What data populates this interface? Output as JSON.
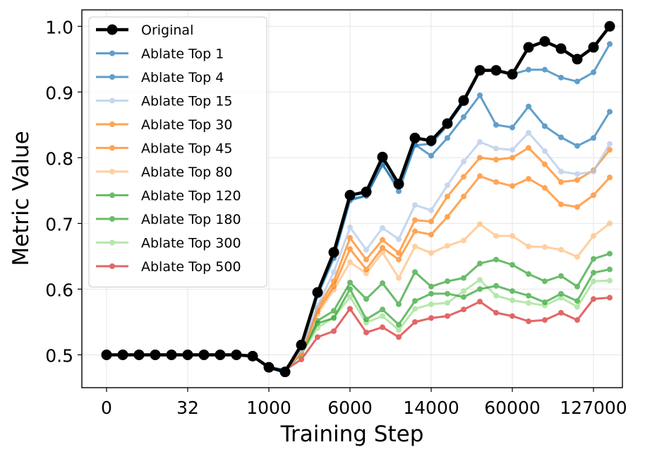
{
  "chart_data": {
    "type": "line",
    "title": "",
    "xlabel": "Training Step",
    "ylabel": "Metric Value",
    "ylim": [
      0.45,
      1.025
    ],
    "yticks": [
      0.5,
      0.6,
      0.7,
      0.8,
      0.9,
      1.0
    ],
    "yticklabels": [
      "0.5",
      "0.6",
      "0.7",
      "0.8",
      "0.9",
      "1.0"
    ],
    "xticklabels": [
      "0",
      "32",
      "1000",
      "6000",
      "14000",
      "60000",
      "127000"
    ],
    "xtick_at_index": [
      0,
      5,
      10,
      15,
      20,
      25,
      30
    ],
    "grid": true,
    "legend_position": "top-left",
    "series": [
      {
        "name": "Original",
        "color": "#000000",
        "emphasis": true,
        "values": [
          0.5,
          0.5,
          0.5,
          0.5,
          0.5,
          0.5,
          0.5,
          0.5,
          0.5,
          0.498,
          0.481,
          0.474,
          0.515,
          0.595,
          0.656,
          0.743,
          0.748,
          0.801,
          0.76,
          0.83,
          0.826,
          0.852,
          0.887,
          0.933,
          0.933,
          0.927,
          0.968,
          0.977,
          0.966,
          0.95,
          0.968,
          1.0
        ]
      },
      {
        "name": "Ablate Top 1",
        "color": "#1f77b4",
        "values": [
          0.5,
          0.5,
          0.5,
          0.5,
          0.5,
          0.5,
          0.5,
          0.5,
          0.5,
          0.498,
          0.481,
          0.477,
          0.513,
          0.593,
          0.65,
          0.737,
          0.742,
          0.791,
          0.749,
          0.819,
          0.821,
          0.849,
          0.884,
          0.931,
          0.934,
          0.927,
          0.934,
          0.934,
          0.922,
          0.916,
          0.93,
          0.973
        ]
      },
      {
        "name": "Ablate Top 4",
        "color": "#1f77b4",
        "values": [
          0.5,
          0.5,
          0.5,
          0.5,
          0.5,
          0.5,
          0.5,
          0.5,
          0.5,
          0.498,
          0.481,
          0.477,
          0.512,
          0.59,
          0.647,
          0.735,
          0.742,
          0.789,
          0.755,
          0.82,
          0.803,
          0.83,
          0.862,
          0.895,
          0.85,
          0.846,
          0.878,
          0.848,
          0.831,
          0.818,
          0.83,
          0.87
        ]
      },
      {
        "name": "Ablate Top 15",
        "color": "#aec7e8",
        "values": [
          0.5,
          0.5,
          0.5,
          0.5,
          0.5,
          0.5,
          0.5,
          0.5,
          0.5,
          0.498,
          0.481,
          0.477,
          0.506,
          0.575,
          0.626,
          0.694,
          0.66,
          0.693,
          0.676,
          0.728,
          0.72,
          0.758,
          0.794,
          0.824,
          0.814,
          0.812,
          0.838,
          0.81,
          0.779,
          0.775,
          0.779,
          0.821
        ]
      },
      {
        "name": "Ablate Top 30",
        "color": "#ff7f0e",
        "values": [
          0.5,
          0.5,
          0.5,
          0.5,
          0.5,
          0.5,
          0.5,
          0.5,
          0.5,
          0.498,
          0.481,
          0.477,
          0.505,
          0.571,
          0.612,
          0.678,
          0.645,
          0.675,
          0.655,
          0.705,
          0.703,
          0.741,
          0.771,
          0.8,
          0.797,
          0.8,
          0.815,
          0.79,
          0.763,
          0.766,
          0.781,
          0.812
        ]
      },
      {
        "name": "Ablate Top 45",
        "color": "#ff7f0e",
        "values": [
          0.5,
          0.5,
          0.5,
          0.5,
          0.5,
          0.5,
          0.5,
          0.5,
          0.5,
          0.498,
          0.481,
          0.477,
          0.503,
          0.566,
          0.604,
          0.661,
          0.63,
          0.663,
          0.645,
          0.688,
          0.683,
          0.71,
          0.741,
          0.772,
          0.763,
          0.757,
          0.768,
          0.754,
          0.729,
          0.725,
          0.743,
          0.77
        ]
      },
      {
        "name": "Ablate Top 80",
        "color": "#ffbb78",
        "values": [
          0.5,
          0.5,
          0.5,
          0.5,
          0.5,
          0.5,
          0.5,
          0.5,
          0.5,
          0.498,
          0.481,
          0.477,
          0.502,
          0.562,
          0.599,
          0.641,
          0.624,
          0.656,
          0.617,
          0.665,
          0.655,
          0.666,
          0.674,
          0.699,
          0.681,
          0.681,
          0.665,
          0.664,
          0.66,
          0.649,
          0.681,
          0.7
        ]
      },
      {
        "name": "Ablate Top 120",
        "color": "#2ca02c",
        "values": [
          0.5,
          0.5,
          0.5,
          0.5,
          0.5,
          0.5,
          0.5,
          0.5,
          0.5,
          0.498,
          0.481,
          0.477,
          0.502,
          0.552,
          0.567,
          0.61,
          0.585,
          0.609,
          0.577,
          0.626,
          0.604,
          0.612,
          0.617,
          0.639,
          0.645,
          0.637,
          0.623,
          0.612,
          0.62,
          0.604,
          0.646,
          0.654
        ]
      },
      {
        "name": "Ablate Top 180",
        "color": "#2ca02c",
        "values": [
          0.5,
          0.5,
          0.5,
          0.5,
          0.5,
          0.5,
          0.5,
          0.5,
          0.5,
          0.498,
          0.481,
          0.477,
          0.501,
          0.548,
          0.556,
          0.6,
          0.554,
          0.569,
          0.546,
          0.582,
          0.593,
          0.593,
          0.588,
          0.6,
          0.605,
          0.597,
          0.59,
          0.58,
          0.593,
          0.582,
          0.625,
          0.63
        ]
      },
      {
        "name": "Ablate Top 300",
        "color": "#98df8a",
        "values": [
          0.5,
          0.5,
          0.5,
          0.5,
          0.5,
          0.5,
          0.5,
          0.5,
          0.5,
          0.498,
          0.481,
          0.477,
          0.501,
          0.541,
          0.557,
          0.588,
          0.549,
          0.559,
          0.538,
          0.57,
          0.577,
          0.579,
          0.597,
          0.614,
          0.59,
          0.583,
          0.579,
          0.575,
          0.587,
          0.573,
          0.612,
          0.613
        ]
      },
      {
        "name": "Ablate Top 500",
        "color": "#d62728",
        "values": [
          0.5,
          0.5,
          0.5,
          0.5,
          0.5,
          0.5,
          0.5,
          0.5,
          0.5,
          0.498,
          0.481,
          0.477,
          0.493,
          0.527,
          0.536,
          0.57,
          0.534,
          0.542,
          0.527,
          0.55,
          0.556,
          0.559,
          0.569,
          0.581,
          0.564,
          0.559,
          0.551,
          0.553,
          0.564,
          0.553,
          0.585,
          0.587
        ]
      }
    ]
  }
}
